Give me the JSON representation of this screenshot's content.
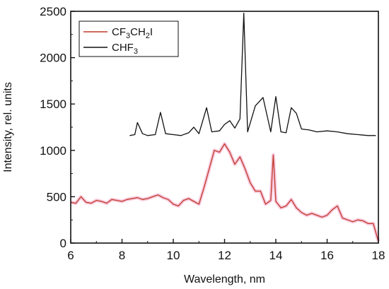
{
  "chart_data": {
    "type": "line",
    "xlabel": "Wavelength, nm",
    "ylabel": "Intensity, rel. units",
    "xlim": [
      6,
      18
    ],
    "ylim": [
      0,
      2500
    ],
    "xticks": [
      6,
      8,
      10,
      12,
      14,
      16,
      18
    ],
    "yticks": [
      0,
      500,
      1000,
      1500,
      2000,
      2500
    ],
    "legend_position": "top-left",
    "series": [
      {
        "name": "CF3CH2I",
        "legend_parts": [
          "CF",
          "3",
          "CH",
          "2",
          "I"
        ],
        "color": "#c0392b",
        "band_color": "#f4a7c8",
        "x": [
          6.0,
          6.2,
          6.4,
          6.6,
          6.8,
          7.0,
          7.2,
          7.4,
          7.6,
          7.8,
          8.0,
          8.2,
          8.4,
          8.6,
          8.8,
          9.0,
          9.2,
          9.4,
          9.6,
          9.8,
          10.0,
          10.2,
          10.4,
          10.6,
          10.8,
          11.0,
          11.2,
          11.4,
          11.6,
          11.8,
          12.0,
          12.2,
          12.4,
          12.6,
          12.8,
          13.0,
          13.2,
          13.4,
          13.6,
          13.8,
          13.9,
          14.0,
          14.2,
          14.4,
          14.6,
          14.8,
          15.0,
          15.2,
          15.4,
          15.6,
          15.8,
          16.0,
          16.2,
          16.4,
          16.6,
          16.8,
          17.0,
          17.2,
          17.4,
          17.6,
          17.8,
          18.0
        ],
        "y": [
          440,
          430,
          500,
          440,
          430,
          460,
          450,
          430,
          470,
          460,
          450,
          470,
          480,
          490,
          470,
          480,
          500,
          520,
          490,
          470,
          420,
          400,
          460,
          480,
          450,
          420,
          600,
          800,
          1000,
          980,
          1070,
          980,
          850,
          930,
          800,
          650,
          560,
          560,
          420,
          460,
          950,
          450,
          380,
          400,
          470,
          380,
          330,
          300,
          320,
          300,
          280,
          300,
          360,
          400,
          270,
          250,
          230,
          250,
          240,
          210,
          210,
          20
        ]
      },
      {
        "name": "CHF3",
        "legend_parts": [
          "CHF",
          "3"
        ],
        "color": "#111111",
        "x": [
          8.3,
          8.5,
          8.6,
          8.8,
          9.0,
          9.3,
          9.5,
          9.7,
          10.0,
          10.3,
          10.6,
          10.8,
          11.0,
          11.3,
          11.5,
          11.8,
          12.0,
          12.2,
          12.4,
          12.6,
          12.75,
          12.9,
          13.2,
          13.5,
          13.8,
          14.0,
          14.2,
          14.4,
          14.6,
          14.8,
          15.0,
          15.3,
          15.6,
          16.0,
          16.4,
          16.8,
          17.2,
          17.6,
          17.9
        ],
        "y": [
          1160,
          1170,
          1300,
          1180,
          1160,
          1170,
          1410,
          1180,
          1170,
          1160,
          1190,
          1250,
          1180,
          1460,
          1200,
          1210,
          1280,
          1320,
          1240,
          1340,
          2480,
          1200,
          1480,
          1570,
          1200,
          1580,
          1200,
          1190,
          1460,
          1400,
          1230,
          1220,
          1200,
          1210,
          1200,
          1180,
          1170,
          1160,
          1160
        ]
      }
    ]
  }
}
